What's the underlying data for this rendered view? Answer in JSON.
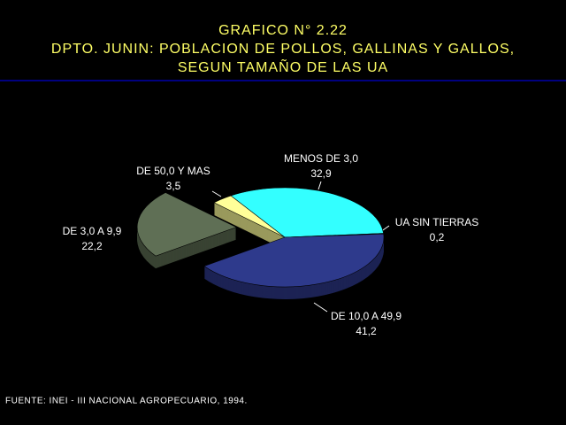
{
  "chart_data": {
    "type": "pie",
    "title": [
      "GRAFICO N° 2.22",
      "DPTO. JUNIN: POBLACION DE POLLOS, GALLINAS Y GALLOS,",
      "SEGUN TAMAÑO DE LAS UA"
    ],
    "categories": [
      "MENOS DE 3,0",
      "UA SIN TIERRAS",
      "DE 10,0 A 49,9",
      "DE 3,0 A 9,9",
      "DE 50,0 Y MAS"
    ],
    "values": [
      32.9,
      0.2,
      41.2,
      22.2,
      3.5
    ],
    "value_labels": [
      "32,9",
      "0,2",
      "41,2",
      "22,2",
      "3,5"
    ],
    "colors": [
      "#33ffff",
      "#cccccc",
      "#2e3a8c",
      "#5f6f55",
      "#ffff99"
    ],
    "source": "FUENTE: INEI - III NACIONAL AGROPECUARIO, 1994."
  }
}
